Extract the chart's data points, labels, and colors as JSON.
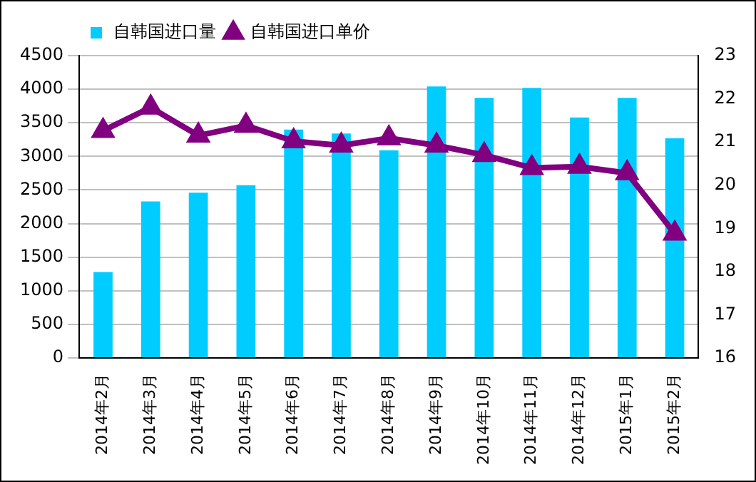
{
  "chart_data": {
    "type": "bar",
    "categories": [
      "2014年2月",
      "2014年3月",
      "2014年4月",
      "2014年5月",
      "2014年6月",
      "2014年7月",
      "2014年8月",
      "2014年9月",
      "2014年10月",
      "2014年11月",
      "2014年12月",
      "2015年1月",
      "2015年2月"
    ],
    "series": [
      {
        "name": "自韩国进口量",
        "color": "#00ccff",
        "values": [
          1280,
          2330,
          2460,
          2570,
          3400,
          3340,
          3090,
          4040,
          3870,
          4020,
          3580,
          3870,
          3270
        ]
      },
      {
        "name": "自韩国进口单价",
        "type": "line",
        "axis": "y2",
        "color": "#800080",
        "marker": "triangle",
        "values": [
          21.26,
          21.8,
          21.15,
          21.38,
          21.02,
          20.92,
          21.09,
          20.92,
          20.7,
          20.4,
          20.43,
          20.28,
          18.88
        ]
      }
    ],
    "ylim": [
      0,
      4500
    ],
    "yticks": [
      0,
      500,
      1000,
      1500,
      2000,
      2500,
      3000,
      3500,
      4000,
      4500
    ],
    "y2lim": [
      16,
      23
    ],
    "y2ticks": [
      16,
      17,
      18,
      19,
      20,
      21,
      22,
      23
    ],
    "grid": "y",
    "legend": "top left"
  }
}
